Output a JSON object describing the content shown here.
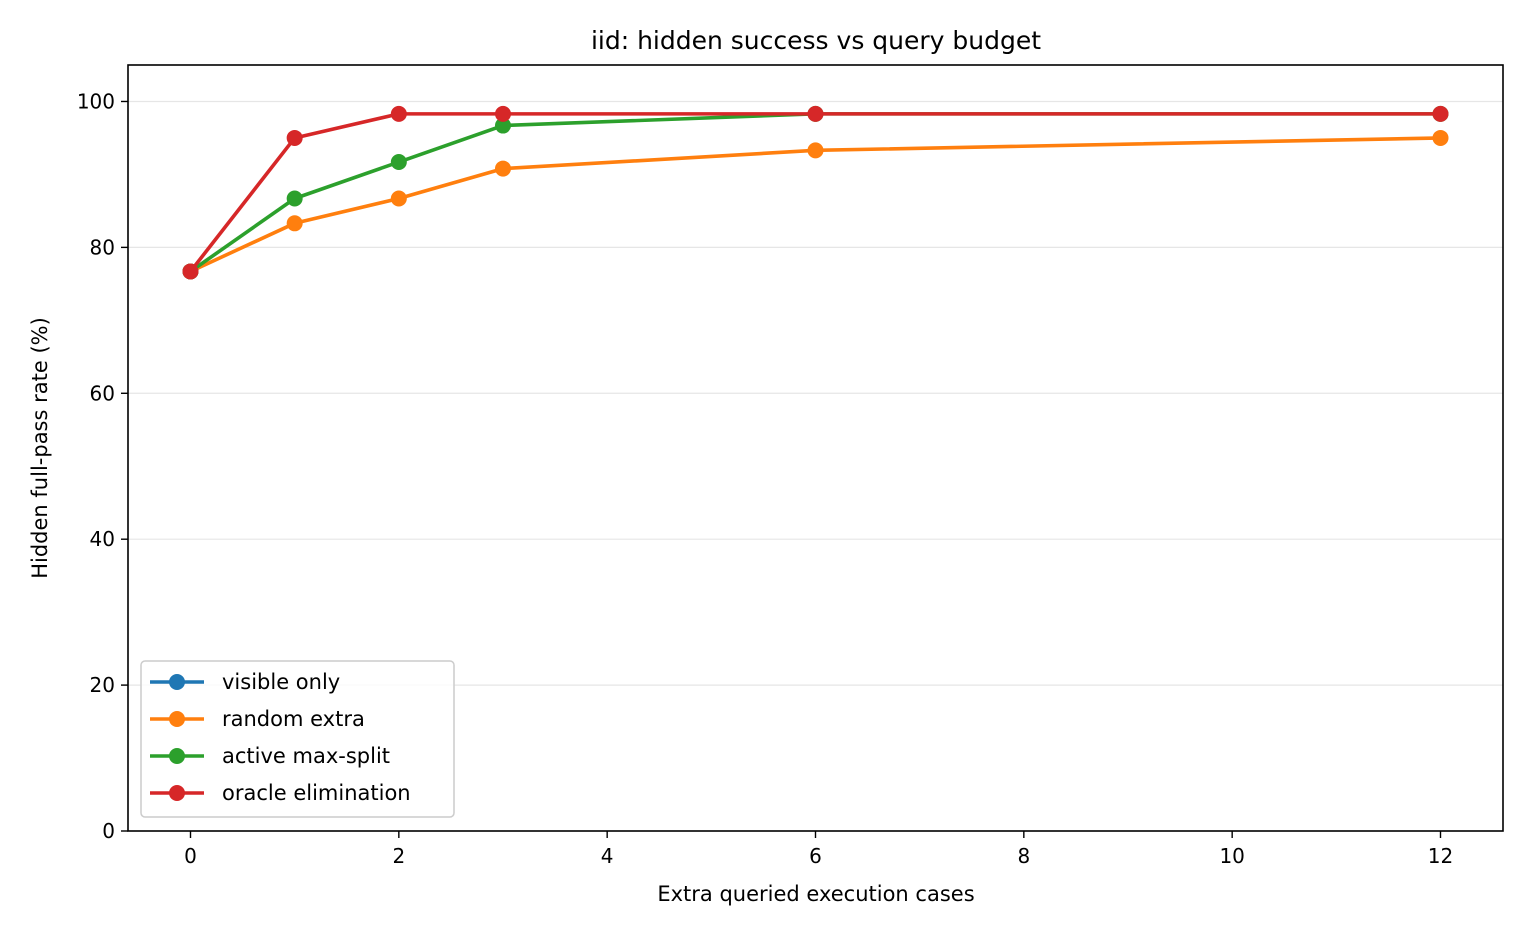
{
  "chart_data": {
    "type": "line",
    "title": "iid: hidden success vs query budget",
    "xlabel": "Extra queried execution cases",
    "ylabel": "Hidden full-pass rate (%)",
    "xlim": [
      -0.6,
      12.6
    ],
    "ylim": [
      0,
      105
    ],
    "xticks": [
      0,
      2,
      4,
      6,
      8,
      10,
      12
    ],
    "yticks": [
      0,
      20,
      40,
      60,
      80,
      100
    ],
    "grid": "horizontal",
    "legend_position": "lower-left",
    "series": [
      {
        "name": "visible only",
        "color": "#1f77b4",
        "x": [
          0
        ],
        "y": [
          76.7
        ]
      },
      {
        "name": "random extra",
        "color": "#ff7f0e",
        "x": [
          0,
          1,
          2,
          3,
          6,
          12
        ],
        "y": [
          76.7,
          83.3,
          86.7,
          90.8,
          93.3,
          95.0
        ]
      },
      {
        "name": "active max-split",
        "color": "#2ca02c",
        "x": [
          0,
          1,
          2,
          3,
          6,
          12
        ],
        "y": [
          76.7,
          86.7,
          91.7,
          96.7,
          98.3,
          98.3
        ]
      },
      {
        "name": "oracle elimination",
        "color": "#d62728",
        "x": [
          0,
          1,
          2,
          3,
          6,
          12
        ],
        "y": [
          76.7,
          95.0,
          98.3,
          98.3,
          98.3,
          98.3
        ]
      }
    ]
  }
}
